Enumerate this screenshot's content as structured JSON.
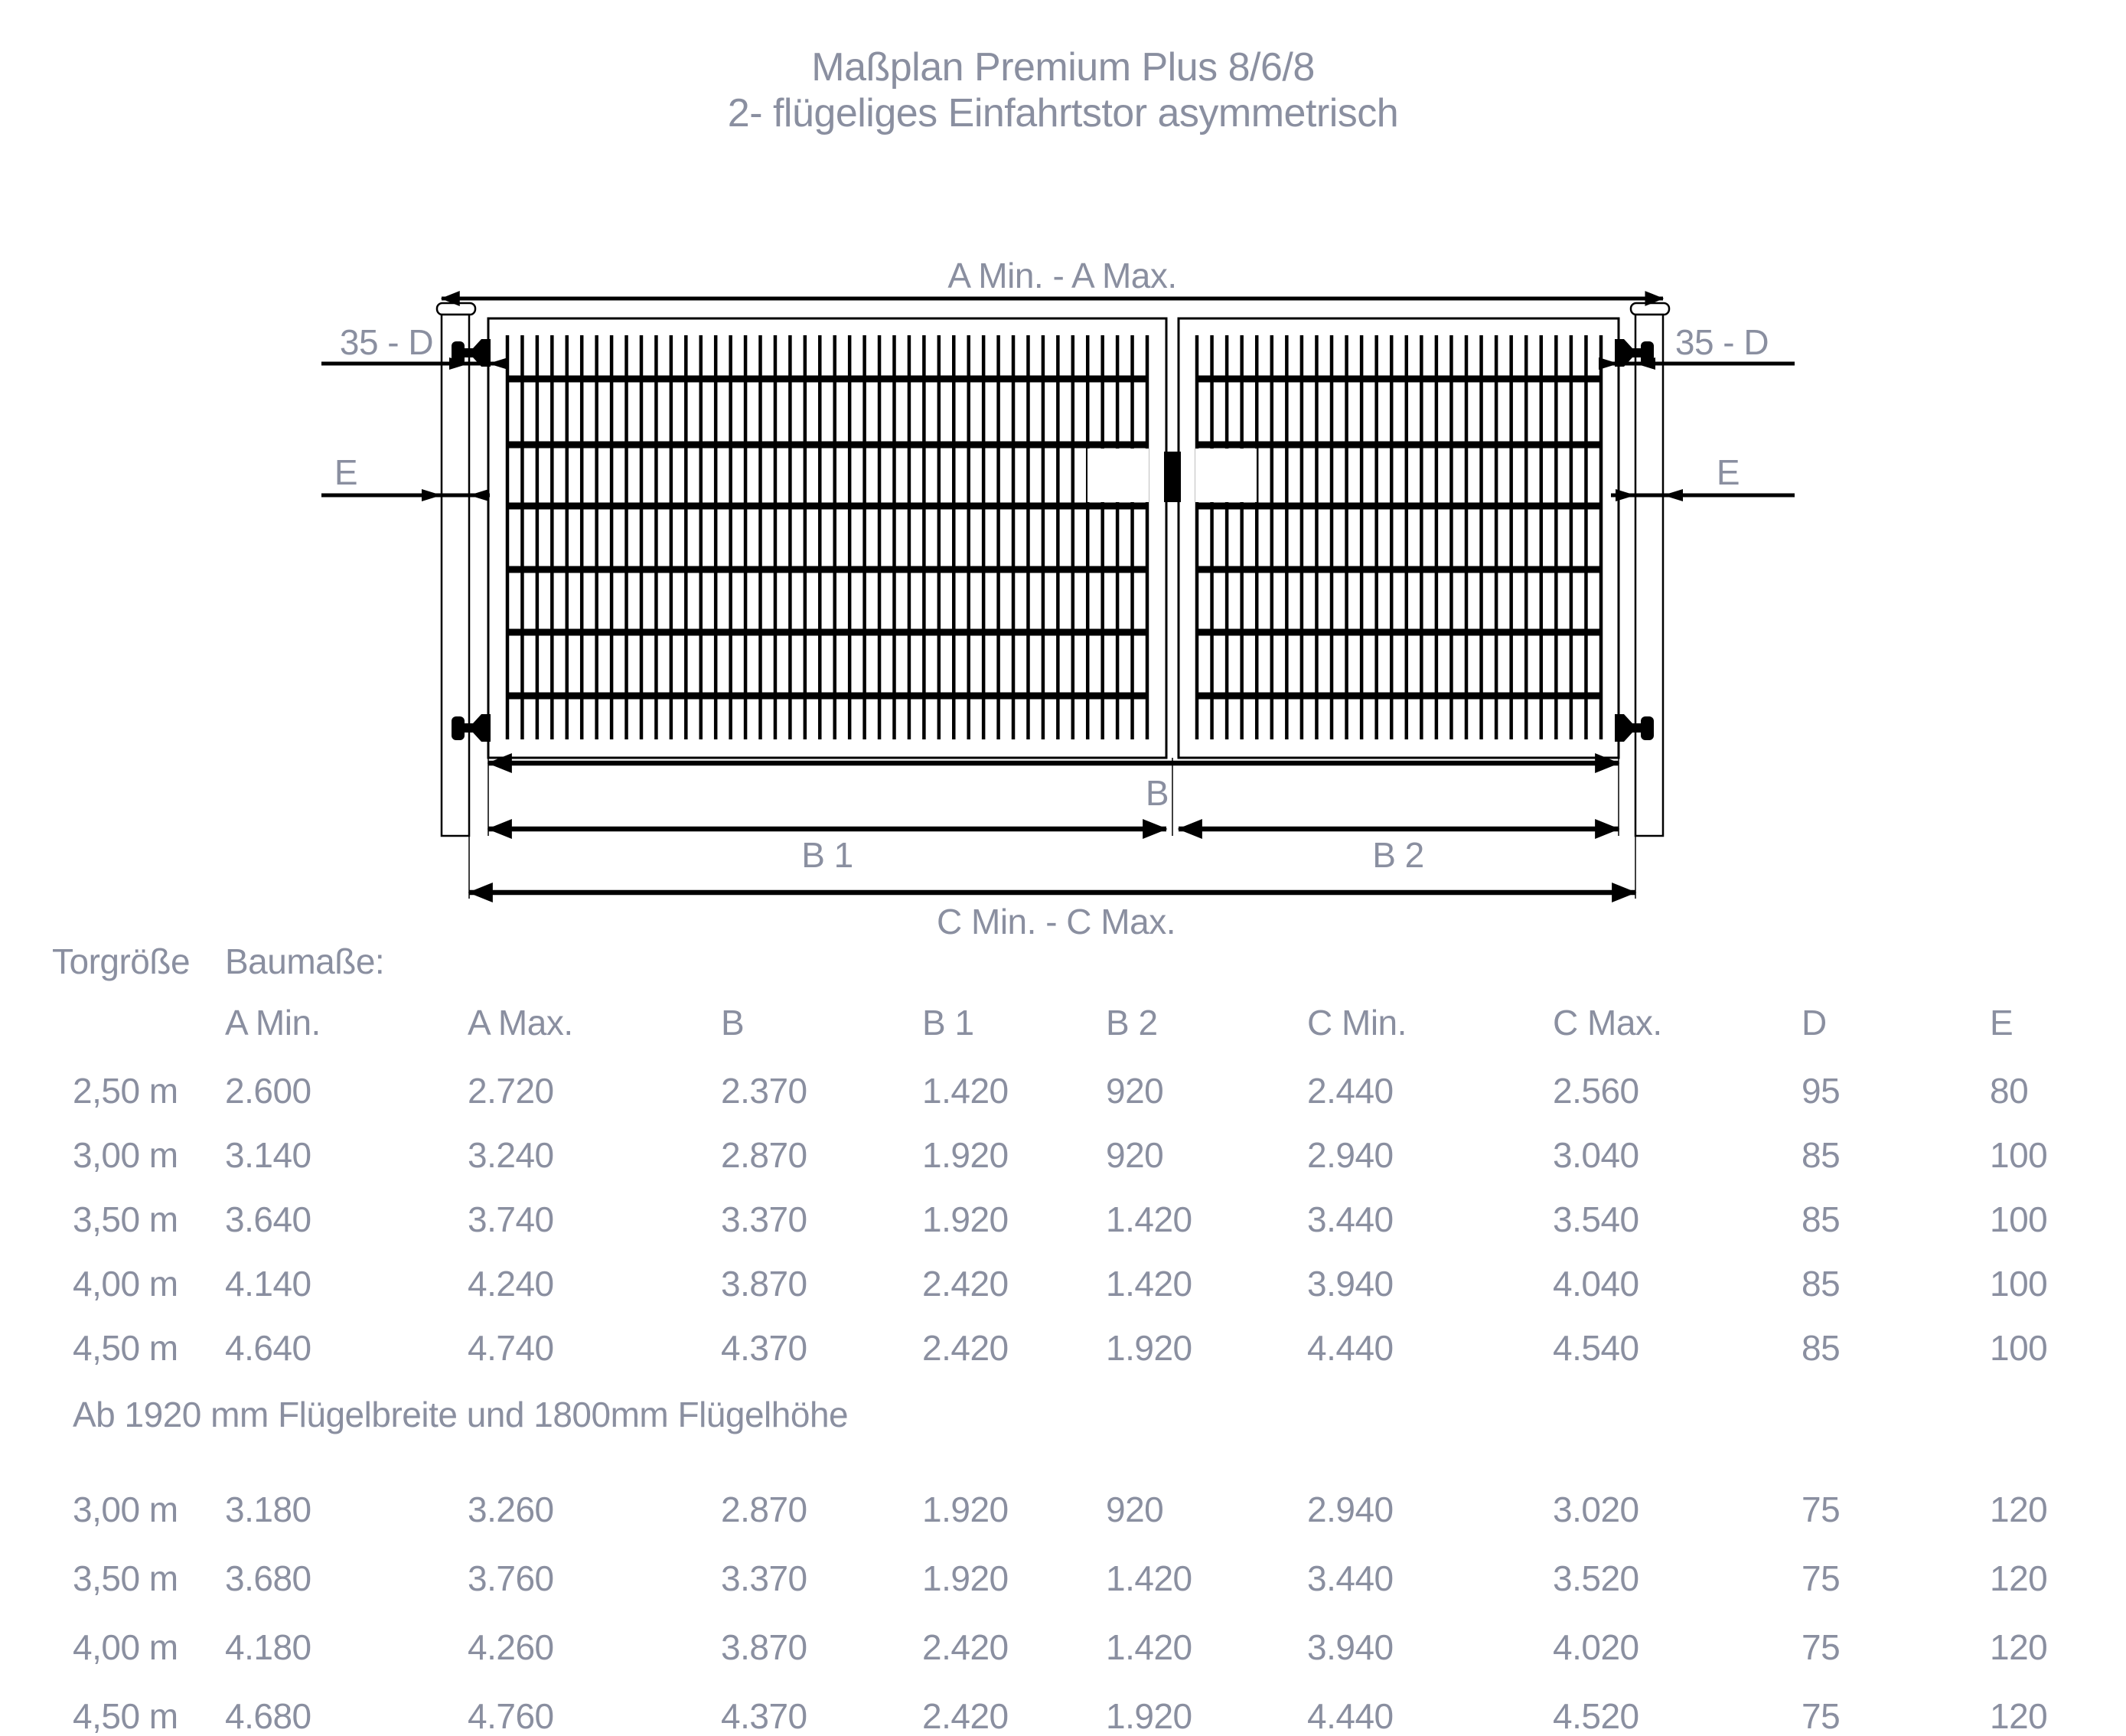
{
  "title": {
    "line1": "Maßplan Premium Plus 8/6/8",
    "line2": "2- flügeliges Einfahrtstor asymmetrisch"
  },
  "diagram": {
    "dim_a_label": "A Min. - A Max.",
    "dim_35d_label": "35 - D",
    "dim_e_label": "E",
    "dim_b_label": "B",
    "dim_b1_label": "B 1",
    "dim_b2_label": "B 2",
    "dim_c_label": "C Min. - C Max."
  },
  "table": {
    "group_header": {
      "torgroesse": "Torgröße",
      "baumasse": "Baumaße:"
    },
    "columns": [
      "A Min.",
      "A Max.",
      "B",
      "B 1",
      "B 2",
      "C Min.",
      "C Max.",
      "D",
      "E"
    ],
    "sections": [
      {
        "rows": [
          {
            "size": "2,50 m",
            "values": [
              "2.600",
              "2.720",
              "2.370",
              "1.420",
              "920",
              "2.440",
              "2.560",
              "95",
              "80"
            ]
          },
          {
            "size": "3,00 m",
            "values": [
              "3.140",
              "3.240",
              "2.870",
              "1.920",
              "920",
              "2.940",
              "3.040",
              "85",
              "100"
            ]
          },
          {
            "size": "3,50 m",
            "values": [
              "3.640",
              "3.740",
              "3.370",
              "1.920",
              "1.420",
              "3.440",
              "3.540",
              "85",
              "100"
            ]
          },
          {
            "size": "4,00 m",
            "values": [
              "4.140",
              "4.240",
              "3.870",
              "2.420",
              "1.420",
              "3.940",
              "4.040",
              "85",
              "100"
            ]
          },
          {
            "size": "4,50 m",
            "values": [
              "4.640",
              "4.740",
              "4.370",
              "2.420",
              "1.920",
              "4.440",
              "4.540",
              "85",
              "100"
            ]
          }
        ]
      },
      {
        "note": "Ab 1920 mm Flügelbreite und 1800mm Flügelhöhe",
        "rows": [
          {
            "size": "3,00 m",
            "values": [
              "3.180",
              "3.260",
              "2.870",
              "1.920",
              "920",
              "2.940",
              "3.020",
              "75",
              "120"
            ]
          },
          {
            "size": "3,50 m",
            "values": [
              "3.680",
              "3.760",
              "3.370",
              "1.920",
              "1.420",
              "3.440",
              "3.520",
              "75",
              "120"
            ]
          },
          {
            "size": "4,00 m",
            "values": [
              "4.180",
              "4.260",
              "3.870",
              "2.420",
              "1.420",
              "3.940",
              "4.020",
              "75",
              "120"
            ]
          },
          {
            "size": "4,50 m",
            "values": [
              "4.680",
              "4.760",
              "4.370",
              "2.420",
              "1.920",
              "4.440",
              "4.520",
              "75",
              "120"
            ]
          }
        ]
      }
    ]
  },
  "colors": {
    "text_gray": "#8a8fa0",
    "line_black": "#000000",
    "background": "#ffffff"
  }
}
